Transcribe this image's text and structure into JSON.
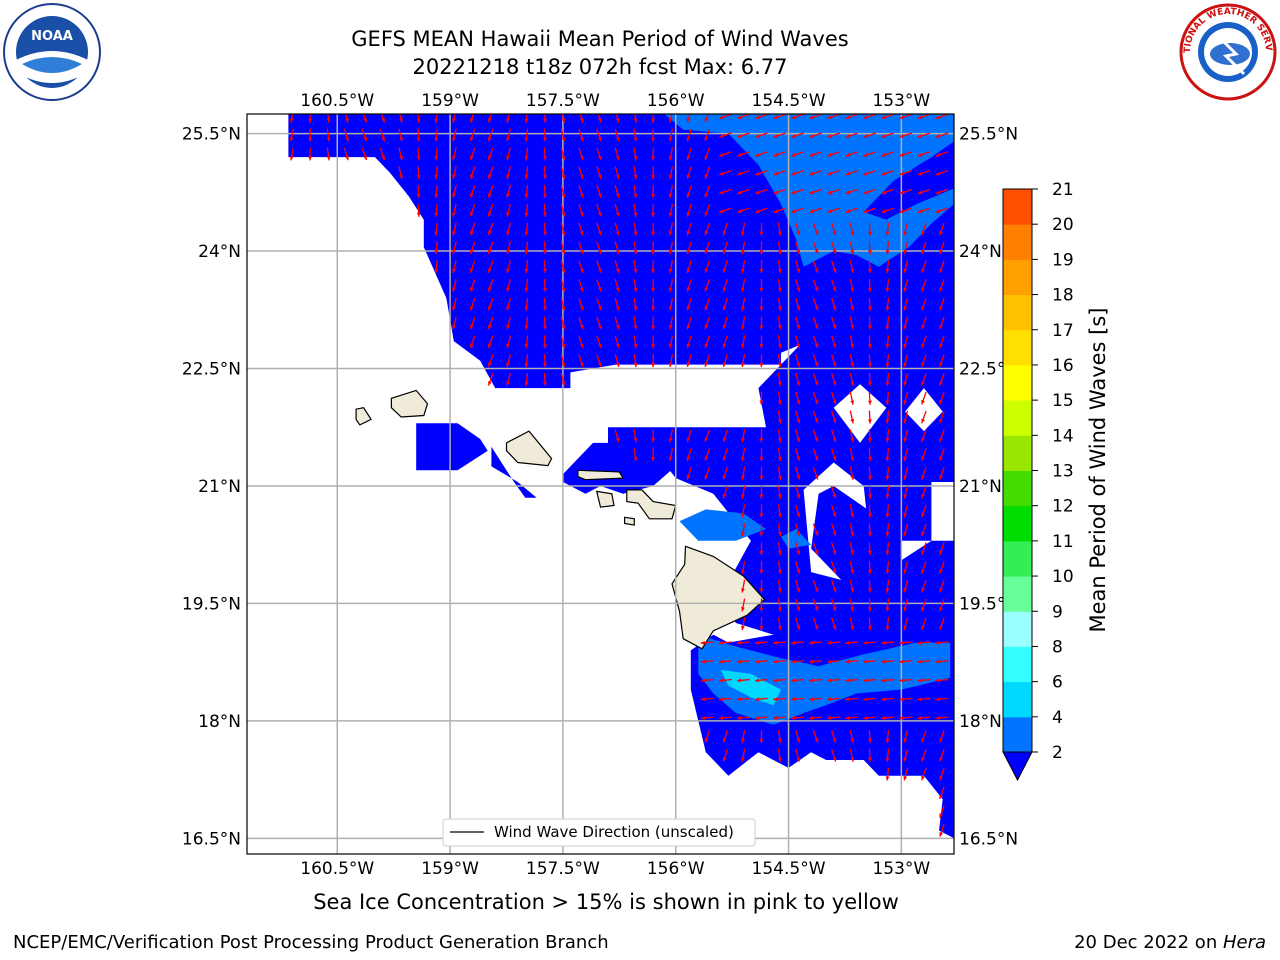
{
  "title": {
    "line1": "GEFS MEAN Hawaii Mean Period of Wind Waves",
    "line2": "20221218 t18z 072h fcst   Max: 6.77"
  },
  "axes": {
    "lon_labels": [
      "160.5°W",
      "159°W",
      "157.5°W",
      "156°W",
      "154.5°W",
      "153°W"
    ],
    "lat_labels": [
      "25.5°N",
      "24°N",
      "22.5°N",
      "21°N",
      "19.5°N",
      "18°N",
      "16.5°N"
    ],
    "lon_values": [
      -160.5,
      -159,
      -157.5,
      -156,
      -154.5,
      -153
    ],
    "lat_values": [
      25.5,
      24,
      22.5,
      21,
      19.5,
      18,
      16.5
    ],
    "lon_range": [
      -161.7,
      -152.3
    ],
    "lat_range": [
      16.3,
      25.75
    ]
  },
  "legend": {
    "label": "Wind Wave Direction (unscaled)"
  },
  "colorbar": {
    "label": "Mean Period of Wind Waves [s]",
    "ticks": [
      "2",
      "4",
      "6",
      "8",
      "9",
      "10",
      "11",
      "12",
      "13",
      "14",
      "15",
      "16",
      "17",
      "18",
      "19",
      "20",
      "21"
    ],
    "colors": [
      "#0073ff",
      "#00d9ff",
      "#33ffff",
      "#99ffff",
      "#66ff99",
      "#33ee55",
      "#00dd00",
      "#44dd00",
      "#99e600",
      "#ccff00",
      "#ffff00",
      "#ffe000",
      "#ffc000",
      "#ffa000",
      "#ff8000",
      "#ff5000",
      "#ff0000"
    ],
    "under_color": "#0000ff",
    "extend": "min"
  },
  "field_colors": {
    "period_lt_2": "#0000ff",
    "period_2_4": "#0073ff",
    "period_4_6": "#00d9ff",
    "arrow": "#ff0000",
    "land": "#efebd8"
  },
  "sea_ice_note": "Sea Ice Concentration > 15% is shown in pink to yellow",
  "footer": {
    "left": "NCEP/EMC/Verification Post Processing Product Generation Branch",
    "right_prefix": "20 Dec 2022 on ",
    "right_machine": "Hera"
  },
  "logos": {
    "left": "NOAA",
    "right": "NATIONAL WEATHER SERVICE"
  }
}
